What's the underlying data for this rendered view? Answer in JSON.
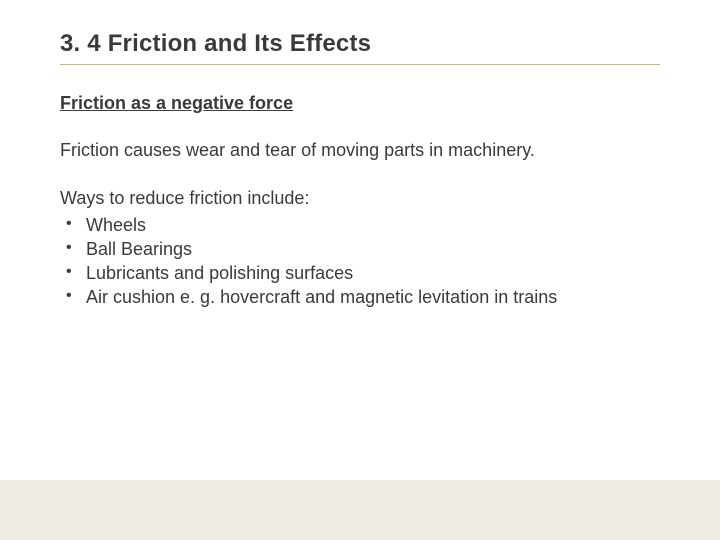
{
  "slide": {
    "title": "3. 4 Friction and Its Effects",
    "subtitle": "Friction as a negative force",
    "paragraph": "Friction causes wear and tear of moving parts in machinery.",
    "list_intro": "Ways to reduce friction include:",
    "bullets": [
      "Wheels",
      "Ball Bearings",
      "Lubricants and polishing surfaces",
      "Air cushion e. g. hovercraft and magnetic levitation in trains"
    ]
  },
  "style": {
    "background_color": "#ffffff",
    "text_color": "#3a3a3a",
    "title_fontsize": 24,
    "subtitle_fontsize": 18,
    "body_fontsize": 18,
    "title_underline_color": "#c0b890",
    "footer_bar_color": "#eeece3",
    "font_family": "Verdana, Geneva, sans-serif"
  }
}
